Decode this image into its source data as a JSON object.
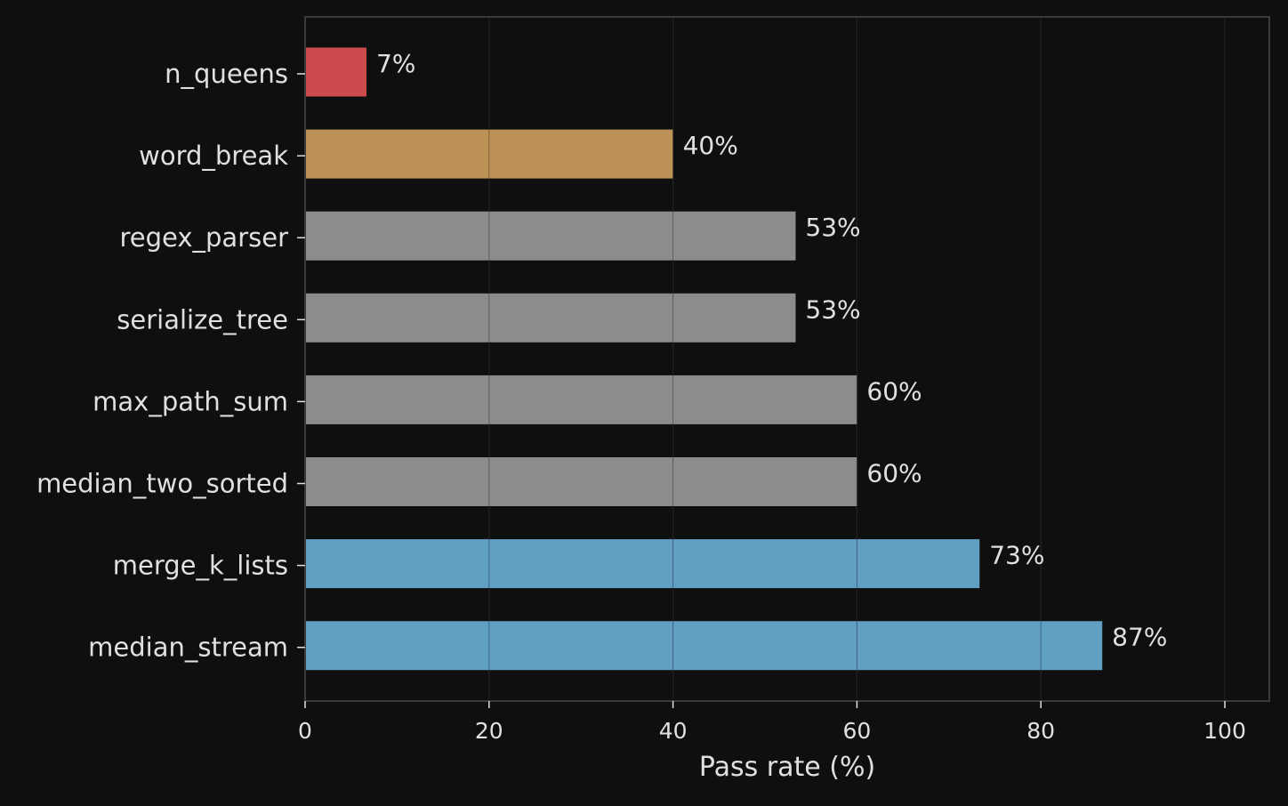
{
  "chart_data": {
    "type": "bar",
    "orientation": "horizontal",
    "categories": [
      "n_queens",
      "word_break",
      "regex_parser",
      "serialize_tree",
      "max_path_sum",
      "median_two_sorted",
      "merge_k_lists",
      "median_stream"
    ],
    "values": [
      6.67,
      40,
      53.33,
      53.33,
      60,
      60,
      73.33,
      86.67
    ],
    "value_labels": [
      "7%",
      "40%",
      "53%",
      "53%",
      "60%",
      "60%",
      "73%",
      "87%"
    ],
    "bar_colors": [
      "#cc4b4c",
      "#bd9257",
      "#8c8c8c",
      "#8c8c8c",
      "#8c8c8c",
      "#8c8c8c",
      "#619fc3",
      "#619fc3"
    ],
    "title": "",
    "xlabel": "Pass rate (%)",
    "ylabel": "",
    "xlim": [
      0,
      105
    ],
    "xticks": [
      0,
      20,
      40,
      60,
      80,
      100
    ],
    "xtick_labels": [
      "0",
      "20",
      "40",
      "60",
      "80",
      "100"
    ],
    "grid": "x",
    "legend": "none"
  },
  "colors": {
    "background": "#0f0f10",
    "plot_background": "#0f0f10",
    "axes_edge": "#3a3a3a",
    "grid": "#2e2e2e",
    "text": "#e0e0e0"
  }
}
